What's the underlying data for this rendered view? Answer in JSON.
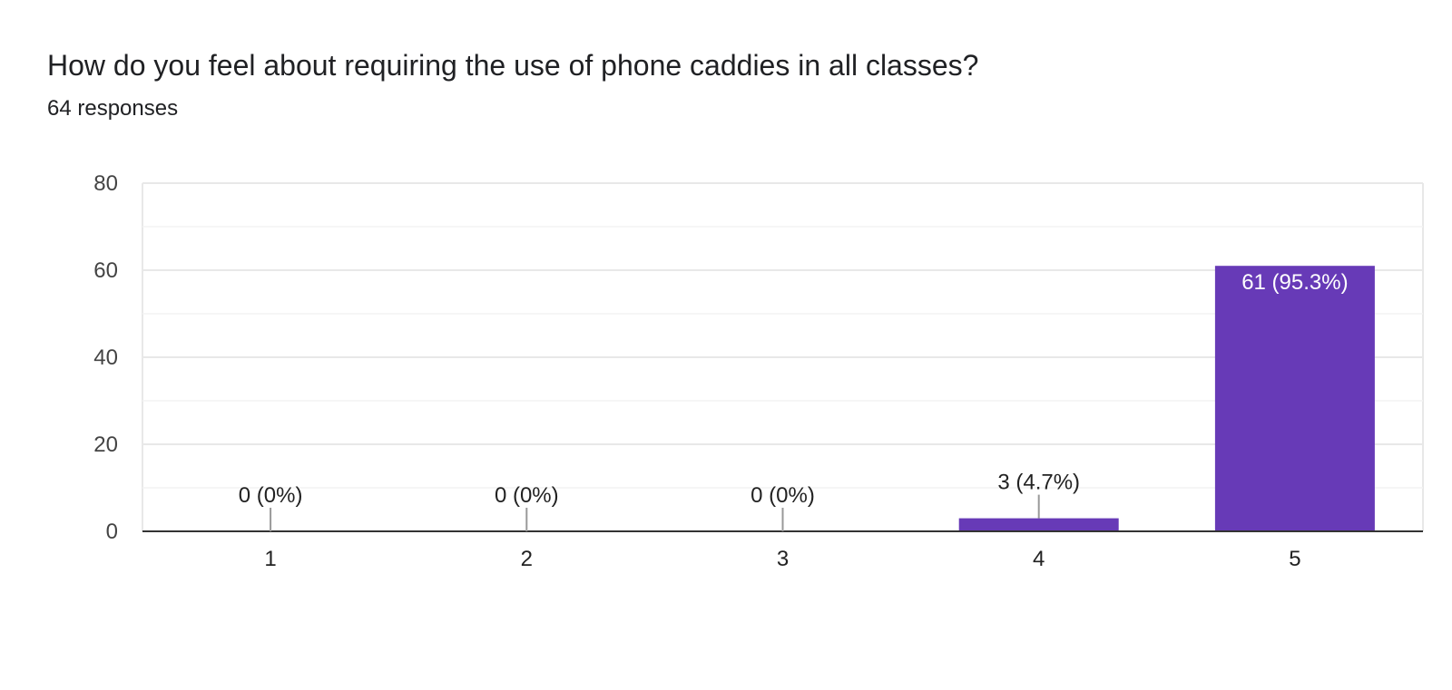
{
  "question": {
    "title": "How do you feel about requiring the use of phone caddies in all classes?",
    "responses_label": "64 responses"
  },
  "colors": {
    "bar": "#673ab7",
    "label_inside": "#ffffff",
    "label_outside": "#222222",
    "gridline_major": "#e8e8e8",
    "gridline_minor": "#f3f3f3",
    "axis": "#333333",
    "leader": "#999999"
  },
  "chart_data": {
    "type": "bar",
    "categories": [
      "1",
      "2",
      "3",
      "4",
      "5"
    ],
    "values": [
      0,
      0,
      0,
      3,
      61
    ],
    "data_labels": [
      "0 (0%)",
      "0 (0%)",
      "0 (0%)",
      "3 (4.7%)",
      "61 (95.3%)"
    ],
    "yticks": [
      0,
      20,
      40,
      60,
      80
    ],
    "ylim": [
      0,
      80
    ],
    "grid": true,
    "legend": "none",
    "xlabel": "",
    "ylabel": ""
  }
}
